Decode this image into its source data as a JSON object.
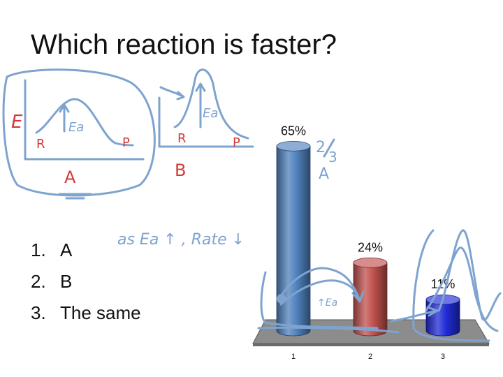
{
  "slide": {
    "title": "Which reaction is faster?",
    "answers": [
      {
        "num": "1.",
        "text": "A"
      },
      {
        "num": "2.",
        "text": "B"
      },
      {
        "num": "3.",
        "text": "The same"
      }
    ]
  },
  "annotations": {
    "diagram_a": {
      "energy_label": "E",
      "ea": "Ea",
      "reactant": "R",
      "product": "P",
      "name": "A"
    },
    "diagram_b": {
      "ea": "Ea",
      "reactant": "R",
      "product": "P",
      "name": "B"
    },
    "note": "as Ea ↑ , Rate ↓",
    "fraction_num": "2",
    "fraction_den": "3",
    "fraction_letter": "A",
    "small_ea": "↑Ea",
    "colors": {
      "blue_ink": "#7fa3cf",
      "red_ink": "#d23a3a"
    }
  },
  "chart_data": {
    "type": "bar",
    "categories": [
      "1",
      "2",
      "3"
    ],
    "values": [
      65,
      24,
      11
    ],
    "data_labels": [
      "65%",
      "24%",
      "11%"
    ],
    "ylim": [
      0,
      70
    ],
    "title": "",
    "xlabel": "",
    "ylabel": "",
    "grid": false,
    "style": "3d-cylinder",
    "colors": [
      "#4f81bd",
      "#c0504d",
      "#1f2bd6"
    ]
  }
}
